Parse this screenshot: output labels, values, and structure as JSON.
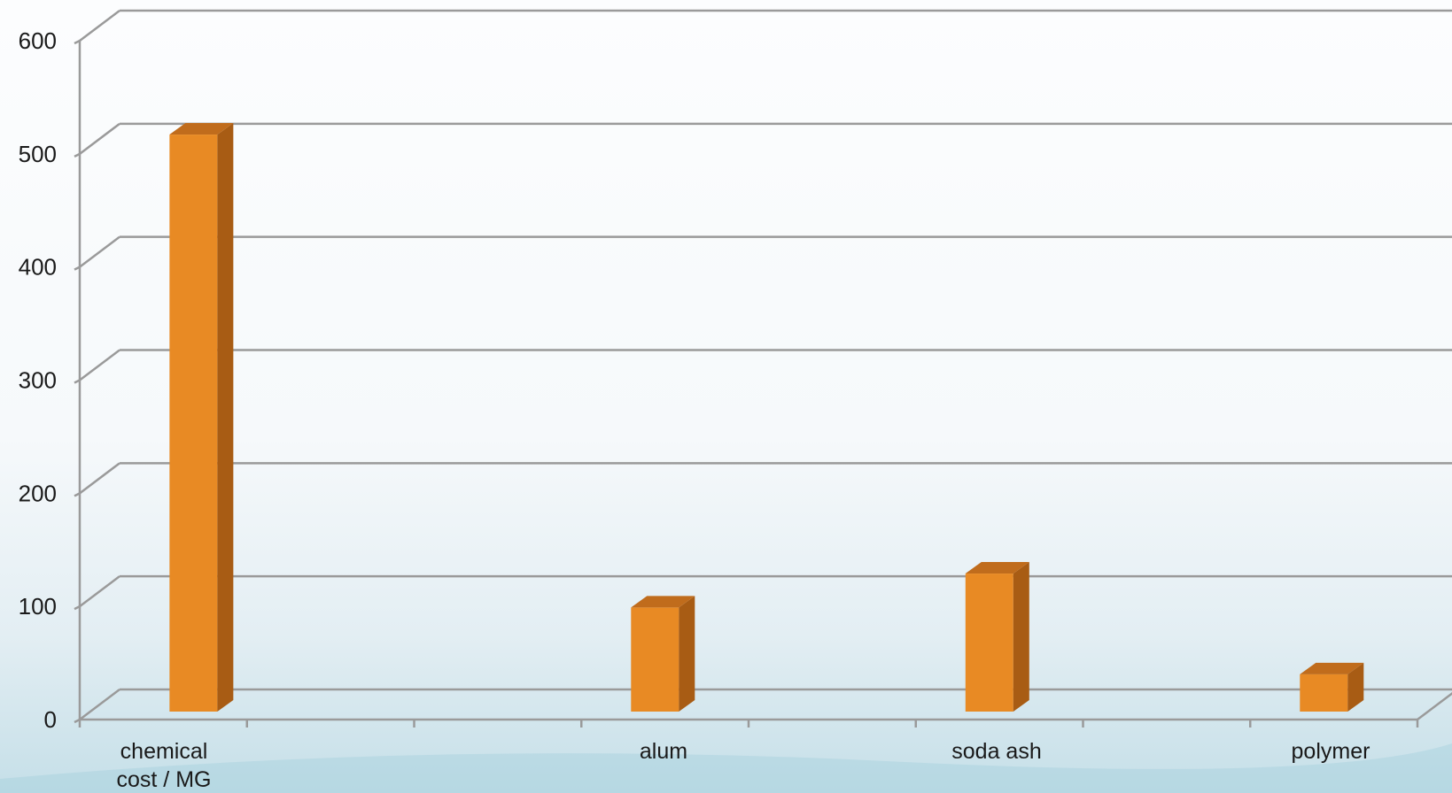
{
  "chart_data": {
    "type": "bar",
    "style": "3d-column",
    "categories": [
      [
        "chemical",
        "cost / MG"
      ],
      [
        "alum"
      ],
      [
        "soda ash"
      ],
      [
        "polymer"
      ]
    ],
    "values": [
      510,
      92,
      122,
      33
    ],
    "ylim": [
      0,
      600
    ],
    "yticks": [
      "0",
      "100",
      "200",
      "300",
      "400",
      "500",
      "600"
    ],
    "grid": true,
    "legend": "none",
    "colors": {
      "bar_front": "#e88a24",
      "bar_side": "#a85c14",
      "bar_top": "#c06c1c",
      "grid": "#9a9a9a"
    }
  }
}
